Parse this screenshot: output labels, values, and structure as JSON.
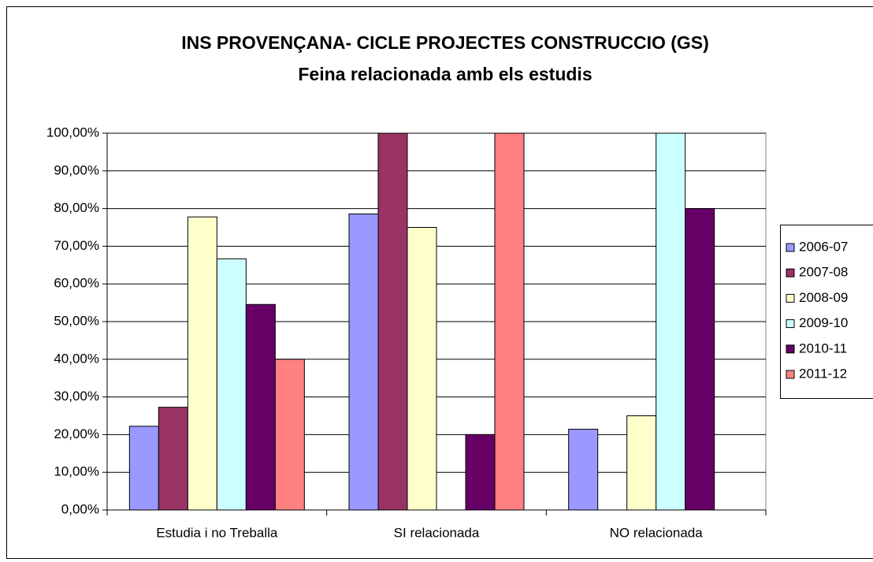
{
  "chart_data": {
    "type": "bar",
    "title": "INS PROVENÇANA- CICLE PROJECTES CONSTRUCCIO (GS)",
    "subtitle": "Feina relacionada amb els estudis",
    "categories": [
      "Estudia i no Treballa",
      "SI relacionada",
      "NO relacionada"
    ],
    "series": [
      {
        "name": "2006-07",
        "color": "#9999ff",
        "values": [
          22.22,
          78.57,
          21.43
        ]
      },
      {
        "name": "2007-08",
        "color": "#993366",
        "values": [
          27.27,
          100,
          null
        ]
      },
      {
        "name": "2008-09",
        "color": "#ffffcc",
        "values": [
          77.78,
          75,
          25
        ]
      },
      {
        "name": "2009-10",
        "color": "#ccffff",
        "values": [
          66.67,
          null,
          100
        ]
      },
      {
        "name": "2010-11",
        "color": "#660066",
        "values": [
          54.55,
          20,
          80
        ]
      },
      {
        "name": "2011-12",
        "color": "#ff8080",
        "values": [
          40,
          100,
          null
        ]
      }
    ],
    "ylim": [
      0,
      100
    ],
    "yticks": [
      {
        "value": 0,
        "label": "0,00%"
      },
      {
        "value": 10,
        "label": "10,00%"
      },
      {
        "value": 20,
        "label": "20,00%"
      },
      {
        "value": 30,
        "label": "30,00%"
      },
      {
        "value": 40,
        "label": "40,00%"
      },
      {
        "value": 50,
        "label": "50,00%"
      },
      {
        "value": 60,
        "label": "60,00%"
      },
      {
        "value": 70,
        "label": "70,00%"
      },
      {
        "value": 80,
        "label": "80,00%"
      },
      {
        "value": 90,
        "label": "90,00%"
      },
      {
        "value": 100,
        "label": "100,00%"
      }
    ],
    "grid": true,
    "legend": "right"
  }
}
